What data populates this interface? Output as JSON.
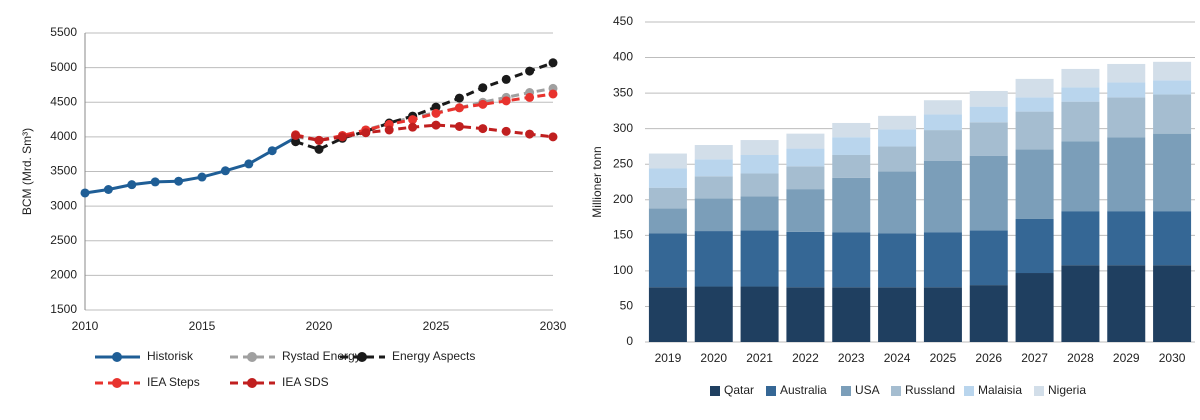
{
  "chart_data": [
    {
      "type": "line",
      "ylabel": "BCM (Mrd. Sm³)",
      "x": [
        2010,
        2011,
        2012,
        2013,
        2014,
        2015,
        2016,
        2017,
        2018,
        2019,
        2020,
        2021,
        2022,
        2023,
        2024,
        2025,
        2026,
        2027,
        2028,
        2029,
        2030
      ],
      "xlim": [
        2010,
        2030
      ],
      "xticks": [
        2010,
        2015,
        2020,
        2025,
        2030
      ],
      "ylim": [
        1500,
        5500
      ],
      "yticks": [
        1500,
        2000,
        2500,
        3000,
        3500,
        4000,
        4500,
        5000,
        5500
      ],
      "grid": true,
      "legend": "bottom",
      "series": [
        {
          "name": "Historisk",
          "color": "#1f5e96",
          "line_style": "solid",
          "values": [
            3190,
            3240,
            3310,
            3350,
            3360,
            3420,
            3510,
            3610,
            3800,
            3990,
            null,
            null,
            null,
            null,
            null,
            null,
            null,
            null,
            null,
            null,
            null
          ]
        },
        {
          "name": "Rystad Energy",
          "color": "#a0a0a0",
          "line_style": "dashed",
          "values": [
            null,
            null,
            null,
            null,
            null,
            null,
            null,
            null,
            null,
            4000,
            3950,
            4000,
            4100,
            4200,
            4280,
            4350,
            4420,
            4500,
            4570,
            4640,
            4700
          ]
        },
        {
          "name": "Energy Aspects",
          "color": "#1a1a1a",
          "line_style": "dashed",
          "values": [
            null,
            null,
            null,
            null,
            null,
            null,
            null,
            null,
            null,
            3930,
            3820,
            3980,
            4080,
            4200,
            4300,
            4430,
            4560,
            4710,
            4830,
            4950,
            5070
          ]
        },
        {
          "name": "IEA Steps",
          "color": "#e8332e",
          "line_style": "dashed",
          "values": [
            null,
            null,
            null,
            null,
            null,
            null,
            null,
            null,
            null,
            4030,
            3950,
            4020,
            4100,
            4180,
            4250,
            4340,
            4420,
            4470,
            4520,
            4570,
            4620
          ]
        },
        {
          "name": "IEA SDS",
          "color": "#c01f1f",
          "line_style": "dashed",
          "values": [
            null,
            null,
            null,
            null,
            null,
            null,
            null,
            null,
            null,
            4020,
            3950,
            4000,
            4060,
            4100,
            4140,
            4170,
            4150,
            4120,
            4080,
            4040,
            4000
          ]
        }
      ]
    },
    {
      "type": "stacked_bar",
      "ylabel": "Millioner tonn",
      "categories": [
        "2019",
        "2020",
        "2021",
        "2022",
        "2023",
        "2024",
        "2025",
        "2026",
        "2027",
        "2028",
        "2029",
        "2030"
      ],
      "ylim": [
        0,
        450
      ],
      "yticks": [
        0,
        50,
        100,
        150,
        200,
        250,
        300,
        350,
        400,
        450
      ],
      "grid": true,
      "legend": "bottom",
      "series": [
        {
          "name": "Qatar",
          "color": "#1f3f60",
          "values": [
            77,
            78,
            78,
            77,
            77,
            77,
            77,
            80,
            97,
            108,
            108,
            108
          ]
        },
        {
          "name": "Australia",
          "color": "#356795",
          "values": [
            76,
            78,
            79,
            78,
            77,
            76,
            77,
            77,
            76,
            76,
            76,
            76
          ]
        },
        {
          "name": "USA",
          "color": "#7b9eb9",
          "values": [
            35,
            46,
            48,
            60,
            77,
            87,
            101,
            105,
            98,
            98,
            104,
            109
          ]
        },
        {
          "name": "Russland",
          "color": "#a5bdd0",
          "values": [
            29,
            31,
            32,
            32,
            32,
            35,
            43,
            47,
            53,
            56,
            56,
            55
          ]
        },
        {
          "name": "Malaisia",
          "color": "#b9d5ed",
          "values": [
            27,
            24,
            26,
            25,
            25,
            24,
            22,
            22,
            20,
            20,
            21,
            20
          ]
        },
        {
          "name": "Nigeria",
          "color": "#d2dee9",
          "values": [
            21,
            20,
            21,
            21,
            20,
            19,
            20,
            22,
            26,
            26,
            26,
            26
          ]
        }
      ]
    }
  ]
}
